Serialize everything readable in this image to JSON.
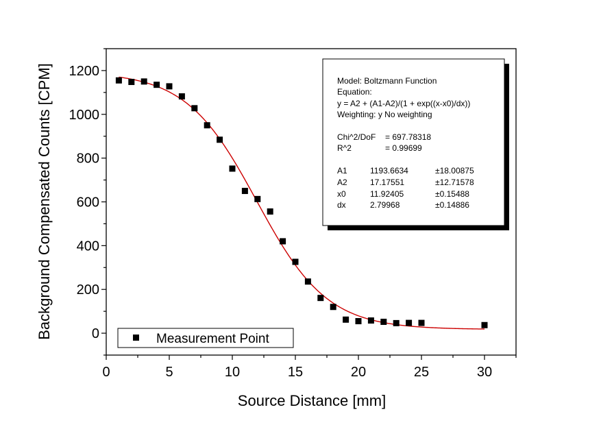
{
  "chart_data": {
    "type": "scatter",
    "xlabel": "Source Distance [mm]",
    "ylabel": "Background Compensated Counts [CPM]",
    "xlim": [
      0,
      32.5
    ],
    "ylim": [
      -100,
      1300
    ],
    "x_ticks": [
      0,
      5,
      10,
      15,
      20,
      25,
      30
    ],
    "y_ticks": [
      0,
      200,
      400,
      600,
      800,
      1000,
      1200
    ],
    "grid": false,
    "legend_position": "bottom-left",
    "legend_label": "Measurement Point",
    "series": [
      {
        "name": "Measurement Point",
        "marker": "square",
        "color": "#000000",
        "x": [
          1,
          2,
          3,
          4,
          5,
          6,
          7,
          8,
          9,
          10,
          11,
          12,
          13,
          14,
          15,
          16,
          17,
          18,
          19,
          20,
          21,
          22,
          23,
          24,
          25,
          30
        ],
        "y": [
          1155,
          1148,
          1150,
          1135,
          1128,
          1082,
          1028,
          950,
          884,
          752,
          650,
          613,
          556,
          420,
          326,
          236,
          161,
          120,
          62,
          55,
          58,
          52,
          46,
          47,
          47,
          37
        ]
      }
    ],
    "fit": {
      "color": "#cc0000",
      "model": "Boltzmann",
      "A1": 1193.6634,
      "A2": 17.17551,
      "x0": 11.92405,
      "dx": 2.79968,
      "x_range": [
        1,
        30
      ]
    },
    "annotation": {
      "lines": [
        "Model: Boltzmann Function",
        "Equation:",
        "y = A2 + (A1-A2)/(1 + exp((x-x0)/dx))",
        "Weighting: y No weighting"
      ],
      "stats": [
        {
          "label": "Chi^2/DoF",
          "value": "= 697.78318"
        },
        {
          "label": "R^2",
          "value": "=  0.99699"
        }
      ],
      "params": [
        {
          "name": "A1",
          "value": "1193.6634",
          "error": "±18.00875"
        },
        {
          "name": "A2",
          "value": "17.17551",
          "error": "±12.71578"
        },
        {
          "name": "x0",
          "value": "11.92405",
          "error": "±0.15488"
        },
        {
          "name": "dx",
          "value": "2.79968",
          "error": "±0.14886"
        }
      ]
    }
  }
}
